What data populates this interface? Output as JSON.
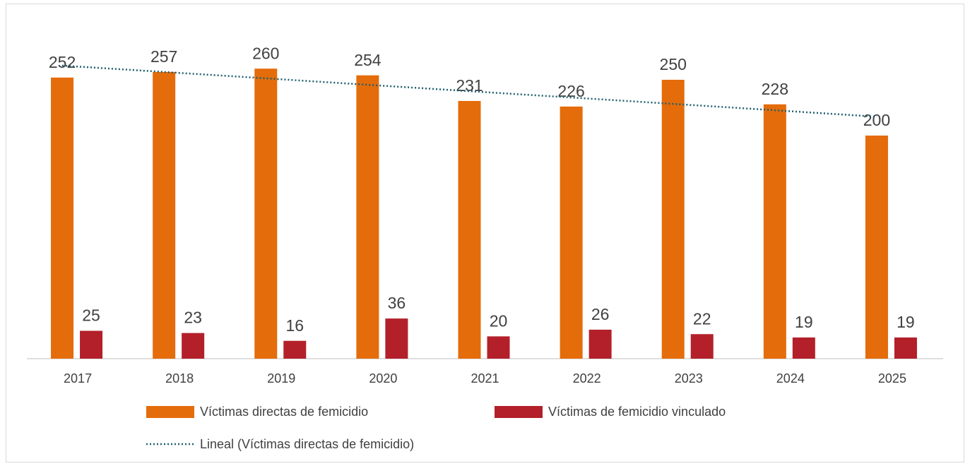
{
  "chart_data": {
    "type": "bar",
    "categories": [
      "2017",
      "2018",
      "2019",
      "2020",
      "2021",
      "2022",
      "2023",
      "2024",
      "2025"
    ],
    "series": [
      {
        "name": "Víctimas directas de femicidio",
        "color": "#e46c0a",
        "values": [
          252,
          257,
          260,
          254,
          231,
          226,
          250,
          228,
          200
        ]
      },
      {
        "name": "Víctimas de femicidio vinculado",
        "color": "#b3202a",
        "values": [
          25,
          23,
          16,
          36,
          20,
          26,
          22,
          19,
          19
        ]
      },
      {
        "name": "Lineal (Víctimas directas de femicidio)",
        "type": "line",
        "color": "#1f5f6f",
        "dotted": true,
        "values": [
          262.7,
          257.0,
          251.3,
          245.5,
          239.8,
          234.1,
          228.4,
          222.7,
          216.9
        ]
      }
    ],
    "ylim": [
      0,
      300
    ],
    "legend": "bottom"
  }
}
